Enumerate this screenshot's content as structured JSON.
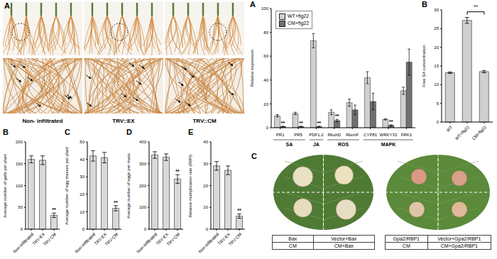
{
  "chart_data": [
    {
      "type": "bar",
      "title": "B",
      "categories": [
        "Non-infiltrated",
        "TRV-EX",
        "TRV-CM"
      ],
      "values": [
        160,
        158,
        32
      ],
      "errors": [
        8,
        10,
        5
      ],
      "color": "#d9d9d9",
      "ylabel": "Average number of galls per plant",
      "ylim": [
        0,
        200
      ],
      "yticks": [
        0,
        50,
        100,
        150,
        200
      ],
      "annotations": [
        {
          "category": "TRV-CM",
          "text": "**"
        }
      ]
    },
    {
      "type": "bar",
      "title": "C",
      "categories": [
        "Non-infiltrated",
        "TRV-EX",
        "TRV-CM"
      ],
      "values": [
        42,
        41,
        12
      ],
      "errors": [
        3,
        3,
        1.5
      ],
      "color": "#d9d9d9",
      "ylabel": "Average number of egg masses per plant",
      "ylim": [
        0,
        50
      ],
      "yticks": [
        0,
        10,
        20,
        30,
        40,
        50
      ],
      "annotations": [
        {
          "category": "TRV-CM",
          "text": "**"
        }
      ]
    },
    {
      "type": "bar",
      "title": "D",
      "categories": [
        "Non-infiltrated",
        "TRV-EX",
        "TRV-CM"
      ],
      "values": [
        340,
        330,
        230
      ],
      "errors": [
        15,
        15,
        20
      ],
      "color": "#d9d9d9",
      "ylabel": "Average number of eggs per mass",
      "ylim": [
        0,
        400
      ],
      "yticks": [
        0,
        100,
        200,
        300,
        400
      ],
      "annotations": [
        {
          "category": "TRV-CM",
          "text": "**"
        }
      ]
    },
    {
      "type": "bar",
      "title": "E",
      "categories": [
        "Non-infiltrated",
        "TRV-EX",
        "TRV-CM"
      ],
      "values": [
        29,
        27,
        6
      ],
      "errors": [
        2,
        2,
        1
      ],
      "color": "#d9d9d9",
      "ylabel": "Relative multiplication rate (Rf/Pi)",
      "ylim": [
        0,
        40
      ],
      "yticks": [
        0,
        10,
        20,
        30,
        40
      ],
      "annotations": [
        {
          "category": "TRV-CM",
          "text": "**"
        }
      ]
    },
    {
      "type": "bar",
      "title": "A",
      "categories": [
        "PR1",
        "PR5",
        "PDF1.2",
        "RbohD",
        "RbohF",
        "CYP81",
        "WRKY33",
        "FRK1"
      ],
      "groups": [
        {
          "label": "SA",
          "categories": [
            "PR1",
            "PR5"
          ]
        },
        {
          "label": "JA",
          "categories": [
            "PDF1.2"
          ]
        },
        {
          "label": "ROS",
          "categories": [
            "RbohD",
            "RbohF"
          ]
        },
        {
          "label": "MAPK",
          "categories": [
            "CYP81",
            "WRKY33",
            "FRK1"
          ]
        }
      ],
      "series": [
        {
          "name": "WT+flg22",
          "color": "#d0d0d0",
          "values": [
            10,
            12,
            73,
            13,
            21,
            42,
            7,
            31
          ],
          "errors": [
            1,
            1,
            6,
            2,
            3,
            5,
            0.5,
            3
          ]
        },
        {
          "name": "CM+flg22",
          "color": "#707070",
          "values": [
            1,
            1,
            1,
            6,
            15,
            22,
            2,
            55
          ],
          "errors": [
            0.3,
            0.3,
            0.3,
            1,
            4,
            7,
            0.5,
            11
          ]
        }
      ],
      "ylabel": "Relative expression",
      "ylim": [
        0,
        100
      ],
      "yticks": [
        0,
        20,
        40,
        60,
        80,
        100
      ],
      "legend": "upper left",
      "annotations": [
        {
          "category": "PR1",
          "series": "CM+flg22",
          "text": "**"
        },
        {
          "category": "PR5",
          "series": "CM+flg22",
          "text": "**"
        },
        {
          "category": "PDF1.2",
          "series": "CM+flg22",
          "text": "**"
        },
        {
          "category": "RbohD",
          "series": "CM+flg22",
          "text": "**"
        },
        {
          "category": "WRKY33",
          "series": "CM+flg22",
          "text": "**"
        }
      ]
    },
    {
      "type": "bar",
      "title": "B",
      "categories": [
        "WT",
        "WT+flg22",
        "CM+flg22"
      ],
      "values": [
        13.2,
        27.2,
        13.5
      ],
      "errors": [
        0.2,
        0.8,
        0.3
      ],
      "color": "#d0d0d0",
      "ylabel": "Free SA concentration",
      "ylim": [
        0,
        30
      ],
      "yticks": [
        0,
        5,
        10,
        15,
        20,
        25,
        30
      ],
      "annotations": [
        {
          "from": "WT+flg22",
          "to": "CM+flg22",
          "text": "**"
        }
      ]
    }
  ],
  "photos": {
    "panel_A": {
      "title": "A",
      "labels": [
        "Non- infiltrated",
        "TRV::EX",
        "TRV::CM"
      ]
    },
    "panel_C": {
      "title": "C",
      "tables": [
        {
          "rows": [
            [
              "Bax",
              "Vector+Bax"
            ],
            [
              "CM",
              "CM+Bax"
            ]
          ]
        },
        {
          "rows": [
            [
              "Gpa2/RBP1",
              "Vector+Gpa2/RBP1"
            ],
            [
              "CM",
              "CM+Gpa2/RBP1"
            ]
          ]
        }
      ]
    }
  }
}
